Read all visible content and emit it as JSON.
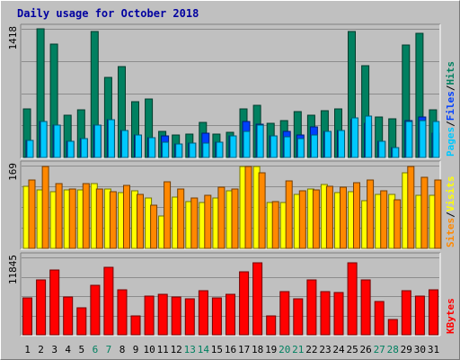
{
  "chart_data": {
    "type": "bar",
    "title": "Daily usage for October 2018",
    "categories": [
      "1",
      "2",
      "3",
      "4",
      "5",
      "6",
      "7",
      "8",
      "9",
      "10",
      "11",
      "12",
      "13",
      "14",
      "15",
      "16",
      "17",
      "18",
      "19",
      "20",
      "21",
      "22",
      "23",
      "24",
      "25",
      "26",
      "27",
      "28",
      "29",
      "30",
      "31"
    ],
    "weekend_days": [
      "6",
      "7",
      "13",
      "14",
      "20",
      "21",
      "27",
      "28"
    ],
    "panels": [
      {
        "id": "hits",
        "ymax_label": "1418",
        "ylim": [
          0,
          1418
        ],
        "legend": [
          "Pages",
          "/",
          "Files",
          "/",
          "Hits"
        ],
        "series": [
          {
            "name": "Hits",
            "color": "#008060",
            "values": [
              535,
              1418,
              1250,
              465,
              530,
              1385,
              885,
              1000,
              610,
              640,
              290,
              250,
              260,
              385,
              260,
              275,
              535,
              575,
              380,
              410,
              510,
              465,
              520,
              535,
              1390,
              1015,
              445,
              425,
              1235,
              1365,
              525
            ]
          },
          {
            "name": "Files",
            "color": "#0040ff",
            "values": [
              190,
              400,
              360,
              180,
              210,
              360,
              420,
              300,
              250,
              220,
              240,
              145,
              155,
              265,
              170,
              235,
              400,
              365,
              235,
              285,
              250,
              340,
              285,
              295,
              420,
              380,
              175,
              110,
              410,
              445,
              270
            ]
          },
          {
            "name": "Pages",
            "color": "#00c8ff",
            "values": [
              190,
              400,
              360,
              180,
              210,
              360,
              420,
              300,
              250,
              220,
              170,
              145,
              155,
              160,
              170,
              235,
              290,
              355,
              235,
              230,
              210,
              245,
              285,
              295,
              440,
              460,
              175,
              110,
              395,
              410,
              400
            ]
          }
        ]
      },
      {
        "id": "visits",
        "ymax_label": "169",
        "ylim": [
          0,
          169
        ],
        "legend": [
          "Sites",
          "/",
          "Visits"
        ],
        "series": [
          {
            "name": "Visits",
            "color": "#ffff00",
            "values": [
              127,
              120,
              115,
              119,
              120,
              133,
              121,
              113,
              118,
              103,
              67,
              104,
              95,
              94,
              103,
              118,
              168,
              167,
              93,
              94,
              111,
              122,
              131,
              114,
              116,
              97,
              110,
              110,
              155,
              108,
              109
            ]
          },
          {
            "name": "Sites",
            "color": "#ff8800",
            "values": [
              139,
              167,
              133,
              121,
              133,
              121,
              116,
              129,
              111,
              89,
              136,
              121,
              103,
              108,
              125,
              122,
              167,
              155,
              96,
              138,
              117,
              119,
              126,
              125,
              134,
              139,
              118,
              100,
              167,
              146,
              139
            ]
          }
        ]
      },
      {
        "id": "kbytes",
        "ymax_label": "11845",
        "ylim": [
          0,
          11845
        ],
        "legend": [
          "KBytes"
        ],
        "series": [
          {
            "name": "KBytes",
            "color": "#ff0000",
            "values": [
              5700,
              8350,
              9850,
              5800,
              4200,
              7550,
              10300,
              6900,
              2950,
              5950,
              6250,
              5850,
              5550,
              6700,
              5600,
              6150,
              9600,
              11050,
              2850,
              6600,
              5550,
              8350,
              6550,
              6450,
              11050,
              8450,
              5100,
              2300,
              6750,
              5950,
              6950
            ]
          }
        ]
      }
    ]
  }
}
